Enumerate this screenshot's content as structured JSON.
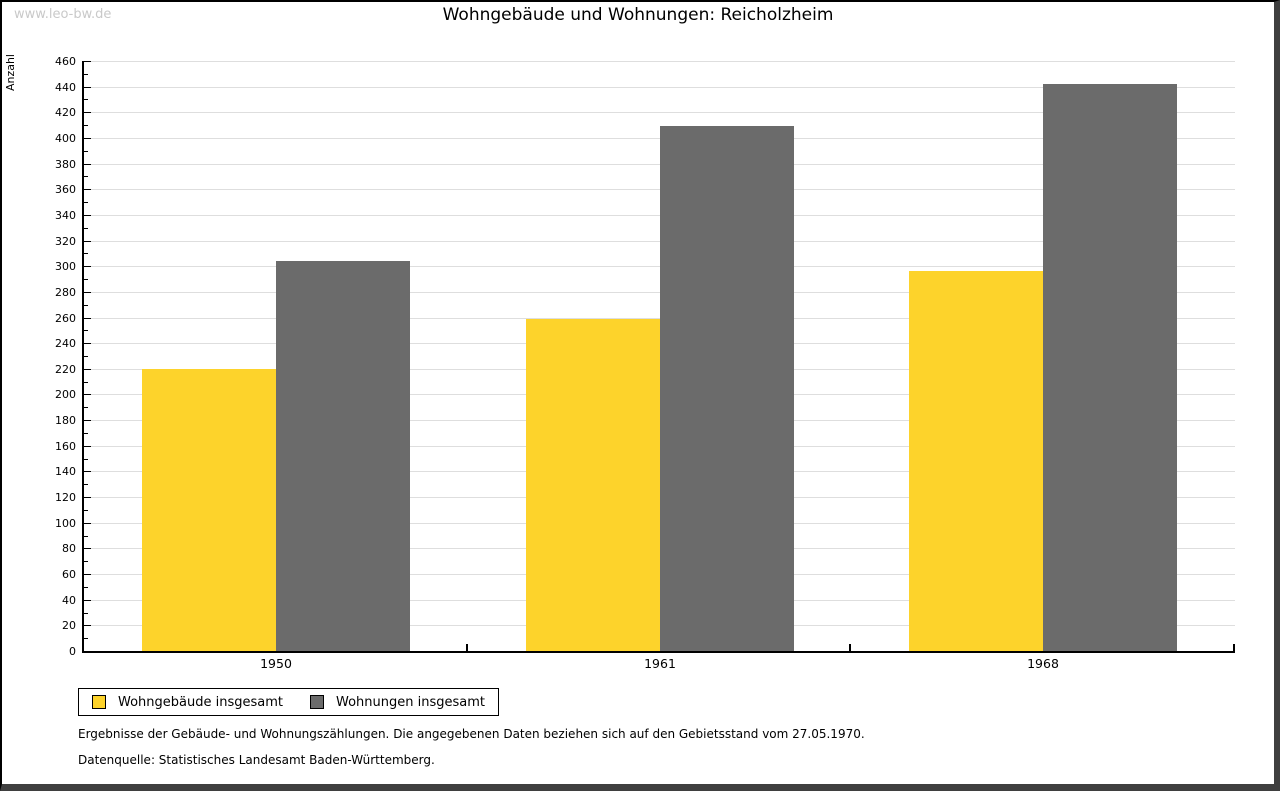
{
  "watermark": "www.leo-bw.de",
  "title": "Wohngebäude und Wohnungen: Reicholzheim",
  "chart_data": {
    "type": "bar",
    "title": "Wohngebäude und Wohnungen: Reicholzheim",
    "xlabel": "",
    "ylabel": "Anzahl",
    "categories": [
      "1950",
      "1961",
      "1968"
    ],
    "series": [
      {
        "name": "Wohngebäude insgesamt",
        "color": "#FDD32B",
        "values": [
          220,
          259,
          296
        ]
      },
      {
        "name": "Wohnungen insgesamt",
        "color": "#6B6B6B",
        "values": [
          304,
          409,
          442
        ]
      }
    ],
    "ylim": [
      0,
      460
    ],
    "ytick_step": 20,
    "yminor_step": 10,
    "grid": true,
    "gridline_color": "#dedede",
    "legend_position": "bottom-left"
  },
  "footnotes": [
    "Ergebnisse der Gebäude- und Wohnungszählungen. Die angegebenen Daten beziehen sich auf den Gebietsstand vom 27.05.1970.",
    "Datenquelle: Statistisches Landesamt Baden-Württemberg."
  ]
}
